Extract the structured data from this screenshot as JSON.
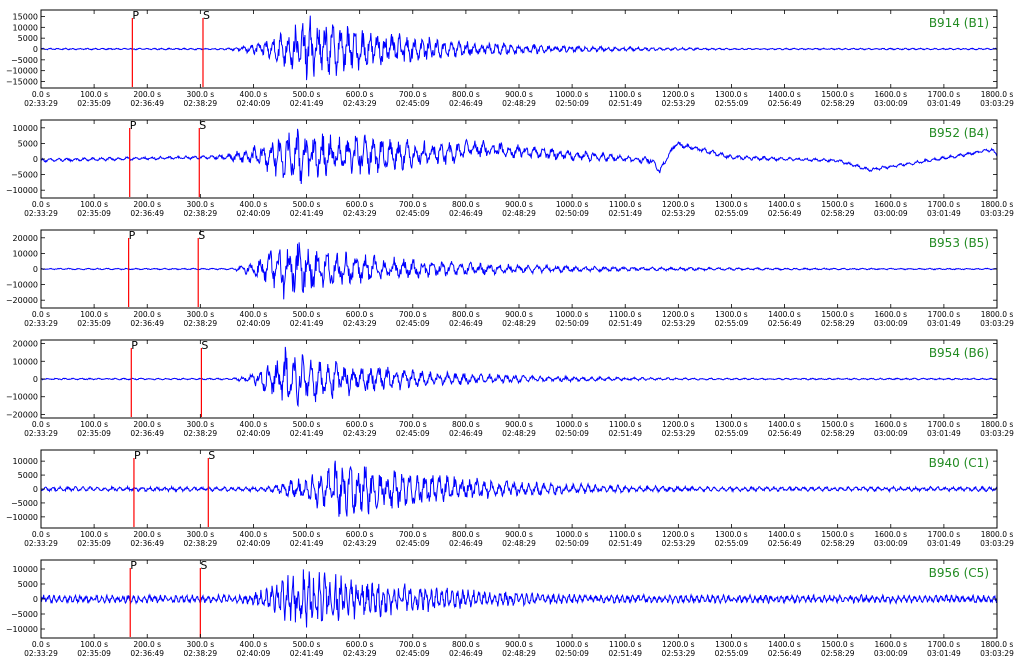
{
  "colors": {
    "trace": "#0000ff",
    "pick": "#ff0000",
    "station_label": "#228b22",
    "axis": "#000000"
  },
  "chart_data": [
    {
      "type": "line",
      "station": "B914 (B1)",
      "ylim": [
        -18000,
        18000
      ],
      "yticks": [
        -15000,
        -10000,
        -5000,
        0,
        5000,
        10000,
        15000
      ],
      "ytick_labels": [
        "−15000",
        "−10000",
        "−5000",
        "0",
        "5000",
        "10000",
        "15000"
      ],
      "picks": [
        {
          "label": "P",
          "t": 172
        },
        {
          "label": "S",
          "t": 305
        }
      ],
      "envelope": {
        "noise": 400,
        "peak": 15000,
        "peak_t": 500,
        "rise_start": 320,
        "decay": 220,
        "coda": 250,
        "period": 14
      }
    },
    {
      "type": "line",
      "station": "B952 (B4)",
      "ylim": [
        -12500,
        12500
      ],
      "yticks": [
        -10000,
        -5000,
        0,
        5000,
        10000
      ],
      "ytick_labels": [
        "−10000",
        "−5000",
        "0",
        "5000",
        "10000"
      ],
      "picks": [
        {
          "label": "P",
          "t": 167
        },
        {
          "label": "S",
          "t": 298
        }
      ],
      "envelope": {
        "noise": 600,
        "peak": 10000,
        "peak_t": 480,
        "rise_start": 280,
        "decay": 250,
        "coda": 1200,
        "period": 16
      },
      "drift": [
        {
          "t": 0,
          "v": -400
        },
        {
          "t": 300,
          "v": 500
        },
        {
          "t": 780,
          "v": 1800
        },
        {
          "t": 800,
          "v": 3500
        },
        {
          "t": 1150,
          "v": -500
        },
        {
          "t": 1165,
          "v": -4000
        },
        {
          "t": 1195,
          "v": 5000
        },
        {
          "t": 1300,
          "v": 500
        },
        {
          "t": 1500,
          "v": -500
        },
        {
          "t": 1560,
          "v": -3500
        },
        {
          "t": 1720,
          "v": 800
        },
        {
          "t": 1790,
          "v": 3000
        },
        {
          "t": 1800,
          "v": 1200
        }
      ]
    },
    {
      "type": "line",
      "station": "B953 (B5)",
      "ylim": [
        -25000,
        25000
      ],
      "yticks": [
        -20000,
        -10000,
        0,
        10000,
        20000
      ],
      "ytick_labels": [
        "−20000",
        "−10000",
        "0",
        "10000",
        "20000"
      ],
      "picks": [
        {
          "label": "P",
          "t": 165
        },
        {
          "label": "S",
          "t": 296
        }
      ],
      "envelope": {
        "noise": 500,
        "peak": 20000,
        "peak_t": 450,
        "rise_start": 340,
        "decay": 200,
        "coda": 900,
        "period": 18
      }
    },
    {
      "type": "line",
      "station": "B954 (B6)",
      "ylim": [
        -22000,
        22000
      ],
      "yticks": [
        -20000,
        -10000,
        0,
        10000,
        20000
      ],
      "ytick_labels": [
        "−20000",
        "−10000",
        "0",
        "10000",
        "20000"
      ],
      "picks": [
        {
          "label": "P",
          "t": 170
        },
        {
          "label": "S",
          "t": 302
        }
      ],
      "envelope": {
        "noise": 500,
        "peak": 17000,
        "peak_t": 460,
        "rise_start": 340,
        "decay": 190,
        "coda": 600,
        "period": 16
      }
    },
    {
      "type": "line",
      "station": "B940 (C1)",
      "ylim": [
        -14000,
        14000
      ],
      "yticks": [
        -10000,
        -5000,
        0,
        5000,
        10000
      ],
      "ytick_labels": [
        "−10000",
        "−5000",
        "0",
        "5000",
        "10000"
      ],
      "picks": [
        {
          "label": "P",
          "t": 175
        },
        {
          "label": "S",
          "t": 315
        }
      ],
      "envelope": {
        "noise": 900,
        "peak": 11000,
        "peak_t": 560,
        "rise_start": 360,
        "decay": 230,
        "coda": 700,
        "period": 14
      }
    },
    {
      "type": "line",
      "station": "B956 (C5)",
      "ylim": [
        -13000,
        13000
      ],
      "yticks": [
        -10000,
        -5000,
        0,
        5000,
        10000
      ],
      "ytick_labels": [
        "−10000",
        "−5000",
        "0",
        "5000",
        "10000"
      ],
      "picks": [
        {
          "label": "P",
          "t": 168
        },
        {
          "label": "S",
          "t": 300
        }
      ],
      "envelope": {
        "noise": 1500,
        "peak": 11000,
        "peak_t": 490,
        "rise_start": 310,
        "decay": 220,
        "coda": 1800,
        "period": 10
      }
    }
  ],
  "x_axis": {
    "xlim": [
      0,
      1800
    ],
    "ticks": [
      {
        "t": 0,
        "top": "0.0 s",
        "bottom": "02:33:29"
      },
      {
        "t": 100,
        "top": "100.0 s",
        "bottom": "02:35:09"
      },
      {
        "t": 200,
        "top": "200.0 s",
        "bottom": "02:36:49"
      },
      {
        "t": 300,
        "top": "300.0 s",
        "bottom": "02:38:29"
      },
      {
        "t": 400,
        "top": "400.0 s",
        "bottom": "02:40:09"
      },
      {
        "t": 500,
        "top": "500.0 s",
        "bottom": "02:41:49"
      },
      {
        "t": 600,
        "top": "600.0 s",
        "bottom": "02:43:29"
      },
      {
        "t": 700,
        "top": "700.0 s",
        "bottom": "02:45:09"
      },
      {
        "t": 800,
        "top": "800.0 s",
        "bottom": "02:46:49"
      },
      {
        "t": 900,
        "top": "900.0 s",
        "bottom": "02:48:29"
      },
      {
        "t": 1000,
        "top": "1000.0 s",
        "bottom": "02:50:09"
      },
      {
        "t": 1100,
        "top": "1100.0 s",
        "bottom": "02:51:49"
      },
      {
        "t": 1200,
        "top": "1200.0 s",
        "bottom": "02:53:29"
      },
      {
        "t": 1300,
        "top": "1300.0 s",
        "bottom": "02:55:09"
      },
      {
        "t": 1400,
        "top": "1400.0 s",
        "bottom": "02:56:49"
      },
      {
        "t": 1500,
        "top": "1500.0 s",
        "bottom": "02:58:29"
      },
      {
        "t": 1600,
        "top": "1600.0 s",
        "bottom": "03:00:09"
      },
      {
        "t": 1700,
        "top": "1700.0 s",
        "bottom": "03:01:49"
      },
      {
        "t": 1800,
        "top": "1800.0 s",
        "bottom": "03:03:29"
      }
    ]
  }
}
